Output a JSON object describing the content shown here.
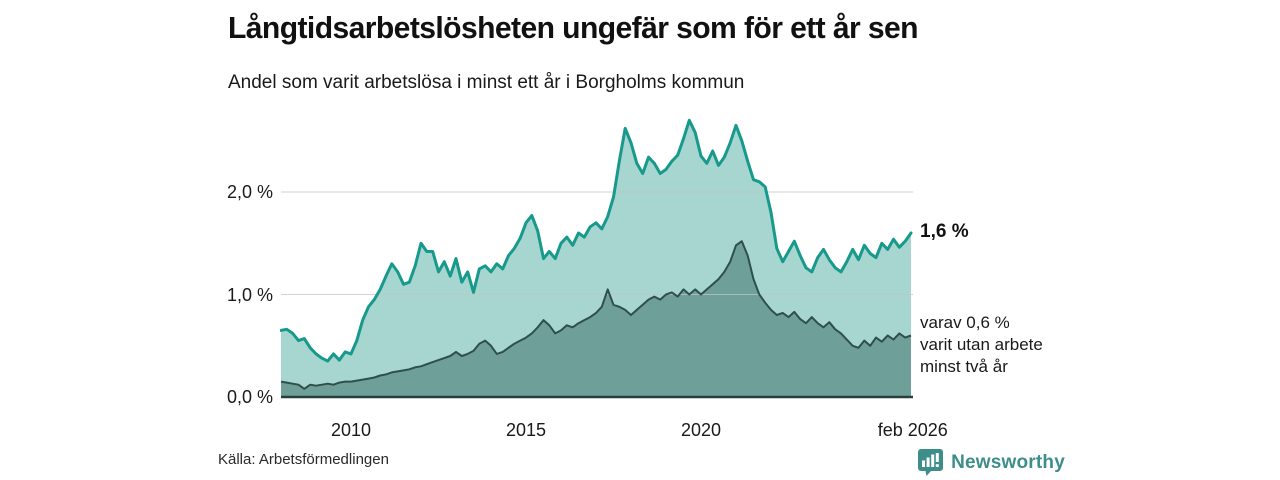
{
  "header": {
    "title": "Långtidsarbetslösheten ungefär som för ett år sen",
    "subtitle": "Andel som varit arbetslösa i minst ett år i Borgholms kommun"
  },
  "annotations": {
    "latest_total": "1,6 %",
    "sub_series": "varav 0,6 %\nvarit utan arbete\nminst två år"
  },
  "footer": {
    "source": "Källa: Arbetsförmedlingen",
    "brand": "Newsworthy"
  },
  "colors": {
    "total_line": "#17998b",
    "total_fill": "#a6d6cf",
    "sub_line": "#2f4f4b",
    "sub_fill": "#6f9f99",
    "grid": "#c4c4c4",
    "axis": "#26403d",
    "brand_teal": "#3d8e8b"
  },
  "chart_data": {
    "type": "area",
    "title": "Långtidsarbetslösheten ungefär som för ett år sen",
    "subtitle": "Andel som varit arbetslösa i minst ett år i Borgholms kommun",
    "unit": "%",
    "x_start": 2008.0,
    "x_step_years": 0.166667,
    "ylim": [
      0,
      2.82
    ],
    "grid": true,
    "yticks": [
      {
        "value": 0,
        "label": "0,0 %"
      },
      {
        "value": 1,
        "label": "1,0 %"
      },
      {
        "value": 2,
        "label": "2,0 %"
      }
    ],
    "xticks": [
      {
        "year": 2010.0,
        "label": "2010"
      },
      {
        "year": 2015.0,
        "label": "2015"
      },
      {
        "year": 2020.0,
        "label": "2020"
      },
      {
        "year": 2026.05,
        "label": "feb 2026"
      }
    ],
    "series": [
      {
        "name": "Arbetslösa minst ett år",
        "end_value": 1.6,
        "end_label": "1,6 %",
        "values": [
          0.65,
          0.66,
          0.62,
          0.55,
          0.57,
          0.48,
          0.42,
          0.38,
          0.35,
          0.42,
          0.36,
          0.44,
          0.42,
          0.55,
          0.75,
          0.88,
          0.95,
          1.05,
          1.18,
          1.3,
          1.22,
          1.1,
          1.12,
          1.28,
          1.5,
          1.42,
          1.42,
          1.22,
          1.32,
          1.18,
          1.35,
          1.12,
          1.22,
          1.02,
          1.25,
          1.28,
          1.22,
          1.3,
          1.25,
          1.38,
          1.45,
          1.55,
          1.7,
          1.77,
          1.62,
          1.35,
          1.42,
          1.35,
          1.5,
          1.56,
          1.48,
          1.6,
          1.56,
          1.66,
          1.7,
          1.64,
          1.76,
          1.95,
          2.3,
          2.62,
          2.48,
          2.28,
          2.18,
          2.34,
          2.28,
          2.18,
          2.22,
          2.3,
          2.36,
          2.52,
          2.7,
          2.58,
          2.35,
          2.28,
          2.4,
          2.26,
          2.34,
          2.48,
          2.65,
          2.5,
          2.3,
          2.12,
          2.1,
          2.05,
          1.8,
          1.45,
          1.32,
          1.42,
          1.52,
          1.38,
          1.26,
          1.22,
          1.36,
          1.44,
          1.34,
          1.26,
          1.22,
          1.32,
          1.44,
          1.34,
          1.48,
          1.4,
          1.36,
          1.5,
          1.44,
          1.54,
          1.46,
          1.52,
          1.6
        ]
      },
      {
        "name": "varav utan arbete minst två år",
        "end_value": 0.6,
        "end_label": "varav 0,6 % varit utan arbete minst två år",
        "values": [
          0.15,
          0.14,
          0.13,
          0.12,
          0.08,
          0.12,
          0.11,
          0.12,
          0.13,
          0.12,
          0.14,
          0.15,
          0.15,
          0.16,
          0.17,
          0.18,
          0.19,
          0.21,
          0.22,
          0.24,
          0.25,
          0.26,
          0.27,
          0.29,
          0.3,
          0.32,
          0.34,
          0.36,
          0.38,
          0.4,
          0.44,
          0.4,
          0.42,
          0.45,
          0.52,
          0.55,
          0.5,
          0.42,
          0.44,
          0.48,
          0.52,
          0.55,
          0.58,
          0.62,
          0.68,
          0.75,
          0.7,
          0.62,
          0.65,
          0.7,
          0.68,
          0.72,
          0.75,
          0.78,
          0.82,
          0.88,
          1.05,
          0.9,
          0.88,
          0.85,
          0.8,
          0.85,
          0.9,
          0.95,
          0.98,
          0.95,
          1.0,
          1.02,
          0.98,
          1.05,
          1.0,
          1.05,
          1.0,
          1.05,
          1.1,
          1.15,
          1.22,
          1.32,
          1.48,
          1.52,
          1.38,
          1.15,
          1.0,
          0.92,
          0.85,
          0.8,
          0.82,
          0.78,
          0.83,
          0.76,
          0.72,
          0.78,
          0.72,
          0.68,
          0.73,
          0.66,
          0.62,
          0.56,
          0.5,
          0.48,
          0.55,
          0.5,
          0.58,
          0.54,
          0.6,
          0.56,
          0.62,
          0.58,
          0.6
        ]
      }
    ]
  }
}
